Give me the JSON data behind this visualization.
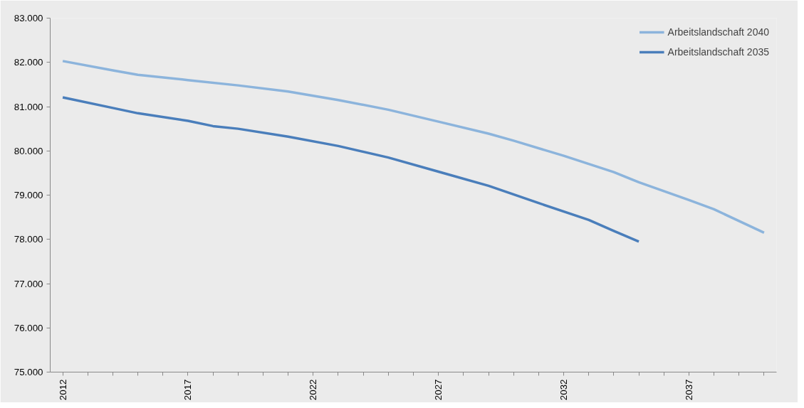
{
  "chart_data": {
    "type": "line",
    "x": [
      2012,
      2014,
      2015,
      2017,
      2019,
      2021,
      2023,
      2025,
      2027,
      2029,
      2030,
      2032,
      2034,
      2035,
      2037,
      2038,
      2040
    ],
    "series": [
      {
        "name": "Arbeitslandschaft 2040",
        "color": "#8cb4dc",
        "values": [
          82030,
          81820,
          81720,
          81600,
          81480,
          81340,
          81150,
          80930,
          80660,
          80390,
          80230,
          79890,
          79520,
          79290,
          78890,
          78680,
          78150
        ]
      },
      {
        "name": "Arbeitslandschaft 2035",
        "color": "#4a7ebb",
        "x": [
          2012,
          2014,
          2015,
          2017,
          2018,
          2019,
          2021,
          2023,
          2025,
          2027,
          2029,
          2031,
          2033,
          2034,
          2035
        ],
        "values": [
          81210,
          80970,
          80850,
          80680,
          80560,
          80500,
          80320,
          80110,
          79850,
          79530,
          79210,
          78820,
          78440,
          78190,
          77950
        ]
      }
    ],
    "xlim": [
      2011.5,
      2040.5
    ],
    "xticks": [
      2012,
      {
        "value": 2013,
        "label": null
      },
      {
        "value": 2014,
        "label": null
      },
      {
        "value": 2015,
        "label": null
      },
      {
        "value": 2016,
        "label": null
      },
      2017,
      {
        "value": 2018,
        "label": null
      },
      {
        "value": 2019,
        "label": null
      },
      {
        "value": 2020,
        "label": null
      },
      {
        "value": 2021,
        "label": null
      },
      2022,
      {
        "value": 2023,
        "label": null
      },
      {
        "value": 2024,
        "label": null
      },
      {
        "value": 2025,
        "label": null
      },
      {
        "value": 2026,
        "label": null
      },
      2027,
      {
        "value": 2028,
        "label": null
      },
      {
        "value": 2029,
        "label": null
      },
      {
        "value": 2030,
        "label": null
      },
      {
        "value": 2031,
        "label": null
      },
      2032,
      {
        "value": 2033,
        "label": null
      },
      {
        "value": 2034,
        "label": null
      },
      {
        "value": 2035,
        "label": null
      },
      {
        "value": 2036,
        "label": null
      },
      2037,
      {
        "value": 2038,
        "label": null
      },
      {
        "value": 2039,
        "label": null
      },
      {
        "value": 2040,
        "label": null
      }
    ],
    "ylim": [
      75000,
      83000
    ],
    "yticks": [
      {
        "value": 75000,
        "label": "75.000"
      },
      {
        "value": 76000,
        "label": "76.000"
      },
      {
        "value": 77000,
        "label": "77.000"
      },
      {
        "value": 78000,
        "label": "78.000"
      },
      {
        "value": 79000,
        "label": "79.000"
      },
      {
        "value": 80000,
        "label": "80.000"
      },
      {
        "value": 81000,
        "label": "81.000"
      },
      {
        "value": 82000,
        "label": "82.000"
      },
      {
        "value": 83000,
        "label": "83.000"
      }
    ],
    "grid": false,
    "legend": "top right",
    "marker": "none",
    "line_style": "solid"
  }
}
